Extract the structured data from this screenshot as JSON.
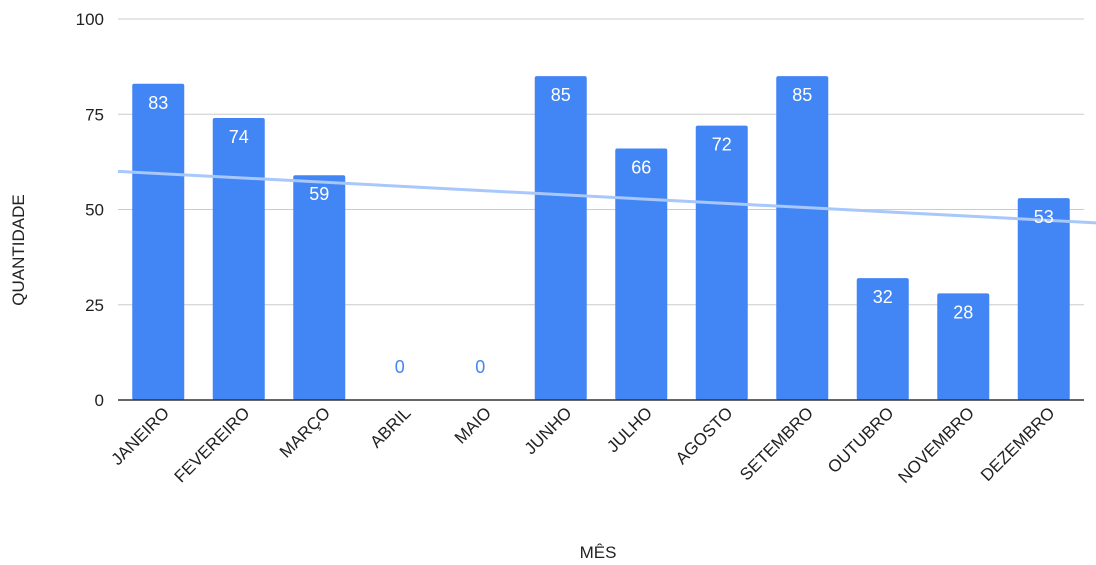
{
  "chart_data": {
    "type": "bar",
    "title": "",
    "xlabel": "MÊS",
    "ylabel": "QUANTIDADE",
    "ylim": [
      0,
      100
    ],
    "yticks": [
      0,
      25,
      50,
      75,
      100
    ],
    "grid": true,
    "categories": [
      "JANEIRO",
      "FEVEREIRO",
      "MARÇO",
      "ABRIL",
      "MAIO",
      "JUNHO",
      "JULHO",
      "AGOSTO",
      "SETEMBRO",
      "OUTUBRO",
      "NOVEMBRO",
      "DEZEMBRO"
    ],
    "values": [
      83,
      74,
      59,
      0,
      0,
      85,
      66,
      72,
      85,
      32,
      28,
      53
    ],
    "trendline": {
      "type": "linear",
      "start": 60,
      "end": 46.5
    },
    "colors": {
      "bar": "#4285f4",
      "trendline": "#a8c7fa",
      "grid": "#cccccc",
      "baseline": "#333333",
      "inside_label": "#ffffff",
      "outside_label": "#4285f4"
    }
  }
}
